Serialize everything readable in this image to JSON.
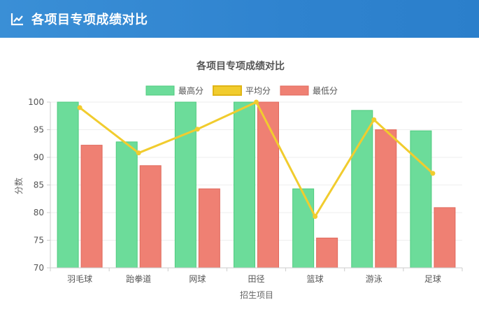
{
  "header": {
    "title": "各项目专项成绩对比",
    "icon": "line-chart-icon"
  },
  "chart_data": {
    "type": "bar",
    "title": "各项目专项成绩对比",
    "xlabel": "招生项目",
    "ylabel": "分数",
    "ylim": [
      70,
      100
    ],
    "yticks": [
      70,
      75,
      80,
      85,
      90,
      95,
      100
    ],
    "grid": true,
    "legend_position": "top-center",
    "categories": [
      "羽毛球",
      "跆拳道",
      "网球",
      "田径",
      "篮球",
      "游泳",
      "足球"
    ],
    "series": [
      {
        "name": "最高分",
        "type": "bar",
        "color": "#6cdc9a",
        "border": "#4fcb7f",
        "values": [
          100,
          92.8,
          100,
          100,
          84.3,
          98.5,
          94.8
        ]
      },
      {
        "name": "平均分",
        "type": "line",
        "color": "#f1cc2e",
        "values": [
          99,
          90.8,
          95.1,
          100,
          79.3,
          96.8,
          87.1
        ]
      },
      {
        "name": "最低分",
        "type": "bar",
        "color": "#ef8073",
        "border": "#e0695c",
        "values": [
          92.2,
          88.5,
          84.3,
          100,
          75.4,
          95,
          80.9
        ]
      }
    ]
  }
}
